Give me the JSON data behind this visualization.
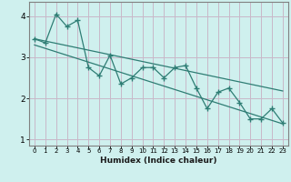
{
  "xlabel": "Humidex (Indice chaleur)",
  "background_color": "#cff0ee",
  "grid_color": "#c8b8c8",
  "line_color": "#2e7d74",
  "x_data": [
    0,
    1,
    2,
    3,
    4,
    5,
    6,
    7,
    8,
    9,
    10,
    11,
    12,
    13,
    14,
    15,
    16,
    17,
    18,
    19,
    20,
    21,
    22,
    23
  ],
  "y_data": [
    3.45,
    3.35,
    4.05,
    3.75,
    3.9,
    2.75,
    2.55,
    3.05,
    2.35,
    2.5,
    2.75,
    2.75,
    2.5,
    2.75,
    2.8,
    2.25,
    1.75,
    2.15,
    2.25,
    1.9,
    1.5,
    1.5,
    1.75,
    1.4
  ],
  "trend1_x": [
    0,
    23
  ],
  "trend1_y": [
    3.45,
    2.18
  ],
  "trend2_x": [
    0,
    23
  ],
  "trend2_y": [
    3.3,
    1.38
  ],
  "xlim": [
    -0.5,
    23.5
  ],
  "ylim": [
    0.85,
    4.35
  ],
  "yticks": [
    1,
    2,
    3,
    4
  ],
  "xticks": [
    0,
    1,
    2,
    3,
    4,
    5,
    6,
    7,
    8,
    9,
    10,
    11,
    12,
    13,
    14,
    15,
    16,
    17,
    18,
    19,
    20,
    21,
    22,
    23
  ]
}
